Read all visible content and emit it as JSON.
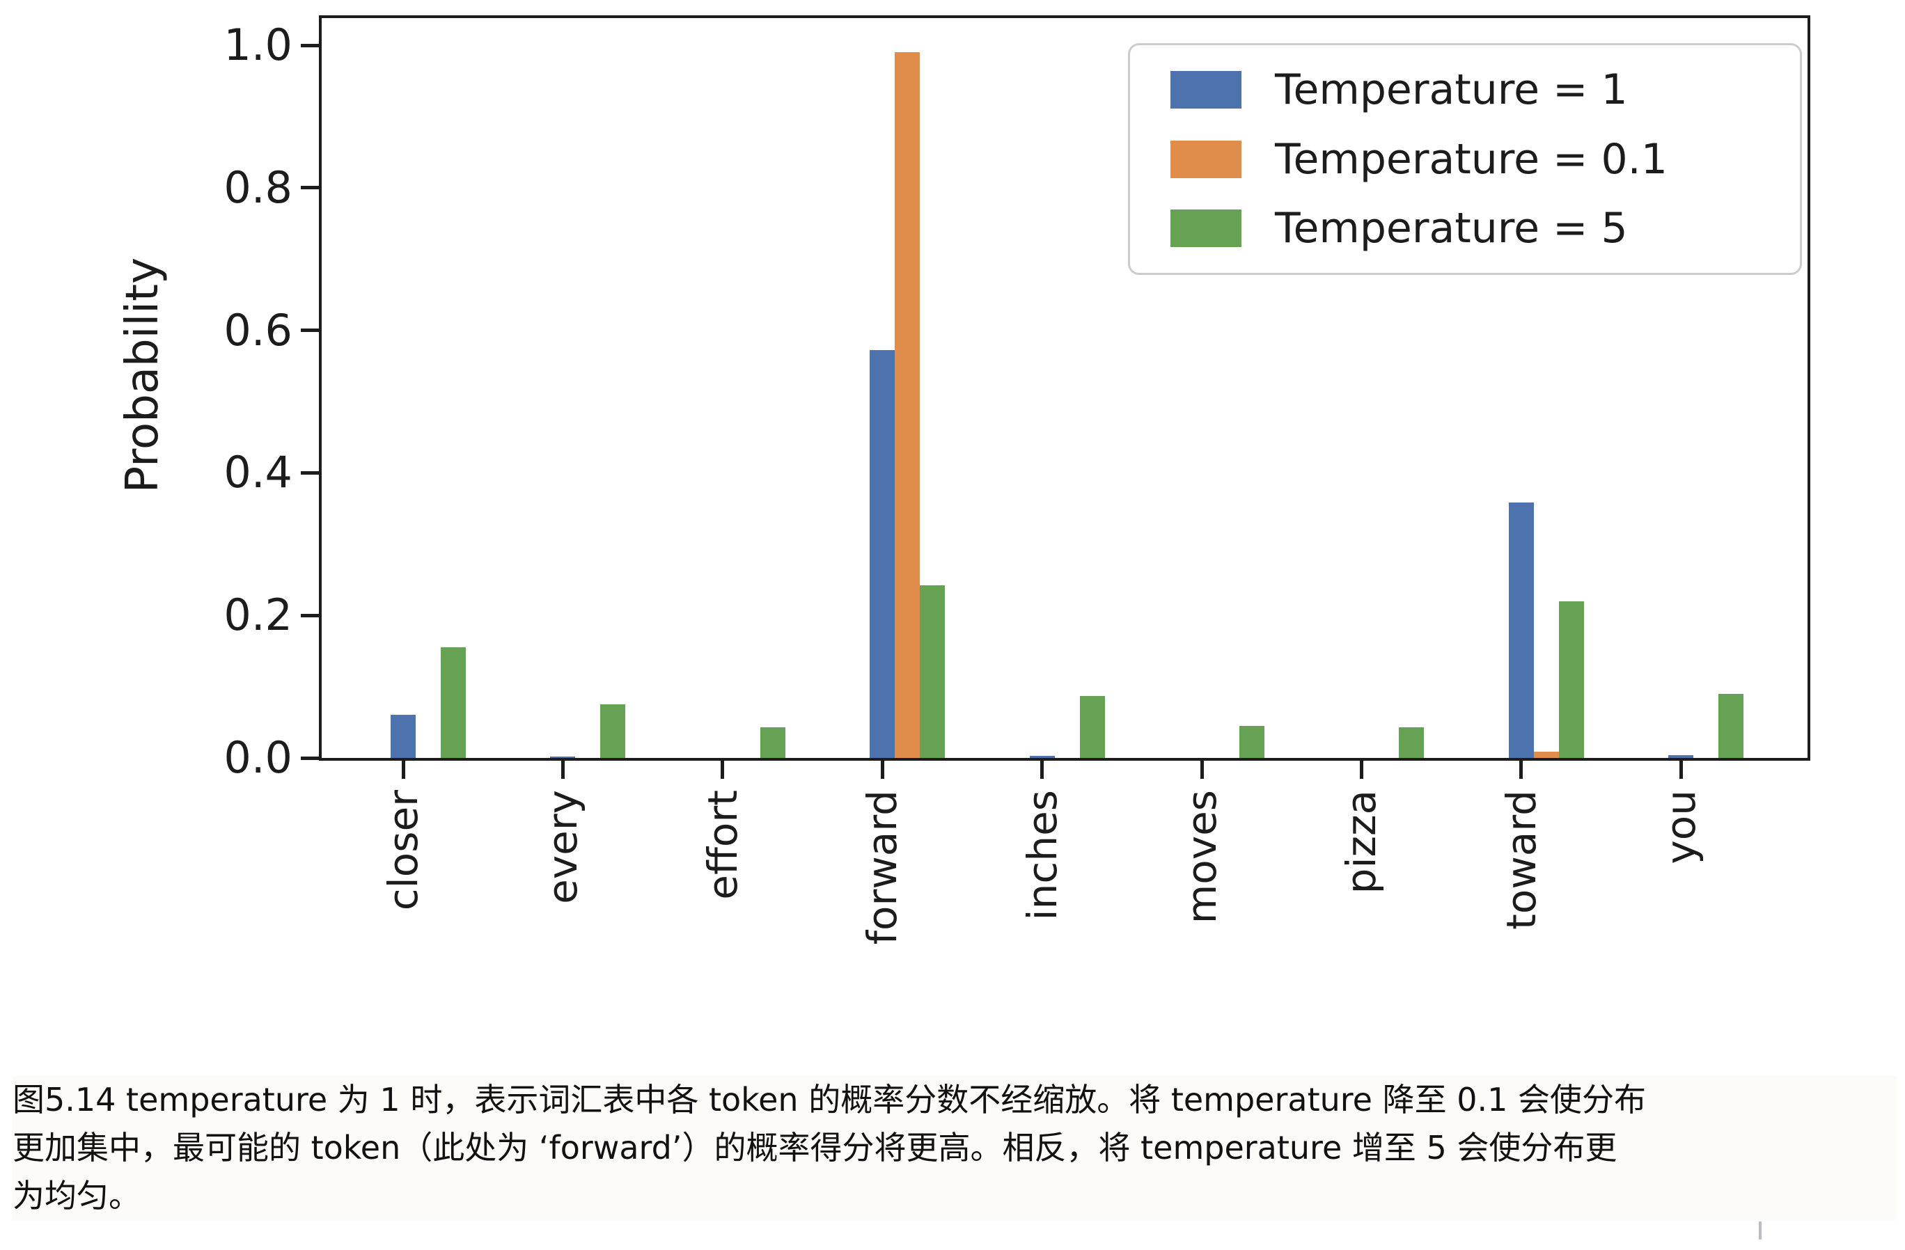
{
  "figure": {
    "caption_lines": [
      "图5.14 temperature 为 1 时，表示词汇表中各 token 的概率分数不经缩放。将 temperature 降至 0.1 会使分布",
      "更加集中，最可能的 token（此处为 ‘forward’）的概率得分将更高。相反，将 temperature 增至 5 会使分布更",
      "为均匀。"
    ]
  },
  "chart_data": {
    "type": "bar",
    "title": "",
    "xlabel": "",
    "ylabel": "Probability",
    "ylim": [
      0,
      1.05
    ],
    "ytick_labels": [
      "0.0",
      "0.2",
      "0.4",
      "0.6",
      "0.8",
      "1.0"
    ],
    "ytick_values": [
      0.0,
      0.2,
      0.4,
      0.6,
      0.8,
      1.0
    ],
    "grid": false,
    "legend_position": "upper right",
    "categories": [
      "closer",
      "every",
      "effort",
      "forward",
      "inches",
      "moves",
      "pizza",
      "toward",
      "you"
    ],
    "series": [
      {
        "name": "Temperature = 1",
        "color": "#4C73AD",
        "values": [
          0.061,
          0.002,
          0.0,
          0.572,
          0.003,
          0.0,
          0.0,
          0.358,
          0.004
        ]
      },
      {
        "name": "Temperature = 0.1",
        "color": "#E08C4A",
        "values": [
          0.0,
          0.0,
          0.0,
          0.99,
          0.0,
          0.0,
          0.0,
          0.009,
          0.0
        ]
      },
      {
        "name": "Temperature = 5",
        "color": "#66A254",
        "values": [
          0.155,
          0.075,
          0.043,
          0.242,
          0.087,
          0.045,
          0.043,
          0.22,
          0.09
        ]
      }
    ],
    "axis_color": "#1c1c1c"
  }
}
